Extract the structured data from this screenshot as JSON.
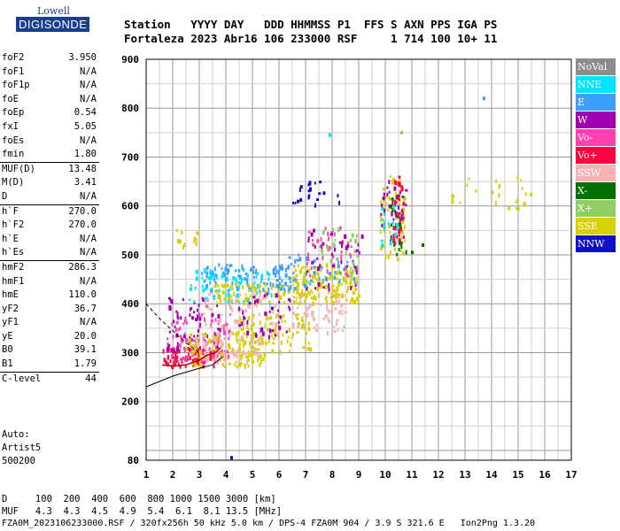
{
  "logo": {
    "line1": "Lowell",
    "line2": "DIGISONDE"
  },
  "header": {
    "line1": "Station   YYYY DAY   DDD HHMMSS P1  FFS S AXN PPS IGA PS",
    "line2": "Fortaleza 2023 Abr16 106 233000 RSF     1 714 100 10+ 11"
  },
  "params": [
    {
      "k": "foF2",
      "v": "3.950"
    },
    {
      "k": "foF1",
      "v": "N/A"
    },
    {
      "k": "foF1p",
      "v": "N/A"
    },
    {
      "k": "foE",
      "v": "N/A"
    },
    {
      "k": "foEp",
      "v": "0.54"
    },
    {
      "k": "fxI",
      "v": "5.05"
    },
    {
      "k": "foEs",
      "v": "N/A"
    },
    {
      "k": "fmin",
      "v": "1.80"
    },
    {
      "k": "MUF(D)",
      "v": "13.48",
      "sep": true
    },
    {
      "k": "M(D)",
      "v": "3.41"
    },
    {
      "k": "D",
      "v": "N/A"
    },
    {
      "k": "h`F",
      "v": "270.0",
      "sep": true
    },
    {
      "k": "h`F2",
      "v": "270.0"
    },
    {
      "k": "h`E",
      "v": "N/A"
    },
    {
      "k": "h`Es",
      "v": "N/A"
    },
    {
      "k": "hmF2",
      "v": "286.3",
      "sep": true
    },
    {
      "k": "hmF1",
      "v": "N/A"
    },
    {
      "k": "hmE",
      "v": "110.0"
    },
    {
      "k": "yF2",
      "v": "36.7"
    },
    {
      "k": "yF1",
      "v": "N/A"
    },
    {
      "k": "yE",
      "v": "20.0"
    },
    {
      "k": "B0",
      "v": "39.1"
    },
    {
      "k": "B1",
      "v": "1.79"
    },
    {
      "k": "C-level",
      "v": "44",
      "sep": true
    }
  ],
  "auto": {
    "line1": "Auto:",
    "line2": "Artist5",
    "line3": "500200"
  },
  "bottom": {
    "d_line": "D     100  200  400  600  800 1000 1500 3000 [km]",
    "muf_line": "MUF   4.3  4.3  4.5  4.9  5.4  6.1  8.1 13.5 [MHz]",
    "footer": "FZA0M_2023106233000.RSF / 320fx256h 50 kHz 5.0 km / DPS-4 FZA0M 904 / 3.9 S 321.6 E   Ion2Png 1.3.20"
  },
  "legend": [
    {
      "label": "NoVal",
      "color": "#8c8c8c"
    },
    {
      "label": "NNE",
      "color": "#00e5ff"
    },
    {
      "label": "E",
      "color": "#3aa0ff"
    },
    {
      "label": "W",
      "color": "#a000b0"
    },
    {
      "label": "Vo-",
      "color": "#ff40b0"
    },
    {
      "label": "Vo+",
      "color": "#ff0040"
    },
    {
      "label": "SSW",
      "color": "#f4b4b4"
    },
    {
      "label": "X-",
      "color": "#007000"
    },
    {
      "label": "X+",
      "color": "#90d060"
    },
    {
      "label": "SSE",
      "color": "#d8d000"
    },
    {
      "label": "NNW",
      "color": "#1010c8"
    }
  ],
  "chart_data": {
    "type": "scatter",
    "xlabel": "",
    "ylabel": "",
    "xlim": [
      1,
      17
    ],
    "ylim": [
      80,
      900
    ],
    "x_ticks": [
      1,
      2,
      3,
      4,
      5,
      6,
      7,
      8,
      9,
      10,
      11,
      12,
      13,
      14,
      15,
      16,
      17
    ],
    "y_ticks": [
      80,
      200,
      300,
      400,
      500,
      600,
      700,
      800,
      900
    ],
    "grid": true,
    "clusters": [
      {
        "series": "Vo+",
        "x": [
          1.6,
          3.6
        ],
        "y": [
          270,
          310
        ],
        "n": 90
      },
      {
        "series": "Vo-",
        "x": [
          1.8,
          4.2
        ],
        "y": [
          280,
          380
        ],
        "n": 90
      },
      {
        "series": "W",
        "x": [
          1.8,
          3.8
        ],
        "y": [
          300,
          420
        ],
        "n": 60
      },
      {
        "series": "SSE",
        "x": [
          2.5,
          5.5
        ],
        "y": [
          270,
          340
        ],
        "n": 120
      },
      {
        "series": "SSW",
        "x": [
          2.8,
          5.4
        ],
        "y": [
          280,
          330
        ],
        "n": 60
      },
      {
        "series": "SSE",
        "x": [
          4.2,
          7.2
        ],
        "y": [
          300,
          380
        ],
        "n": 90
      },
      {
        "series": "SSW",
        "x": [
          3.0,
          6.0
        ],
        "y": [
          330,
          420
        ],
        "n": 70
      },
      {
        "series": "E",
        "x": [
          3.2,
          6.5
        ],
        "y": [
          420,
          480
        ],
        "n": 110
      },
      {
        "series": "NNE",
        "x": [
          2.6,
          5.8
        ],
        "y": [
          400,
          470
        ],
        "n": 70
      },
      {
        "series": "SSE",
        "x": [
          3.5,
          6.5
        ],
        "y": [
          400,
          440
        ],
        "n": 60
      },
      {
        "series": "W",
        "x": [
          4.5,
          6.5
        ],
        "y": [
          330,
          420
        ],
        "n": 40
      },
      {
        "series": "SSE",
        "x": [
          6.5,
          9.0
        ],
        "y": [
          400,
          480
        ],
        "n": 150
      },
      {
        "series": "SSW",
        "x": [
          6.5,
          8.5
        ],
        "y": [
          340,
          420
        ],
        "n": 60
      },
      {
        "series": "E",
        "x": [
          6.0,
          9.0
        ],
        "y": [
          430,
          500
        ],
        "n": 50
      },
      {
        "series": "Vo-",
        "x": [
          7.0,
          9.0
        ],
        "y": [
          450,
          560
        ],
        "n": 40
      },
      {
        "series": "W",
        "x": [
          7.0,
          9.2
        ],
        "y": [
          430,
          550
        ],
        "n": 40
      },
      {
        "series": "X+",
        "x": [
          7.0,
          9.0
        ],
        "y": [
          440,
          560
        ],
        "n": 30
      },
      {
        "series": "SSE",
        "x": [
          9.8,
          10.8
        ],
        "y": [
          490,
          660
        ],
        "n": 60
      },
      {
        "series": "Vo+",
        "x": [
          10.3,
          10.7
        ],
        "y": [
          520,
          660
        ],
        "n": 40
      },
      {
        "series": "W",
        "x": [
          9.8,
          10.8
        ],
        "y": [
          560,
          650
        ],
        "n": 30
      },
      {
        "series": "X-",
        "x": [
          10.2,
          10.8
        ],
        "y": [
          500,
          620
        ],
        "n": 20
      },
      {
        "series": "NNW",
        "x": [
          6.5,
          8.3
        ],
        "y": [
          600,
          650
        ],
        "n": 20
      },
      {
        "series": "SSE",
        "x": [
          12.5,
          15.5
        ],
        "y": [
          590,
          660
        ],
        "n": 25
      },
      {
        "series": "SSE",
        "x": [
          2.0,
          3.0
        ],
        "y": [
          510,
          550
        ],
        "n": 12
      },
      {
        "series": "NNE",
        "x": [
          9.8,
          10.5
        ],
        "y": [
          520,
          600
        ],
        "n": 15
      }
    ],
    "singles": [
      {
        "series": "E",
        "x": 13.7,
        "y": 820
      },
      {
        "series": "NNE",
        "x": 7.9,
        "y": 745
      },
      {
        "series": "X+",
        "x": 10.6,
        "y": 750
      },
      {
        "series": "NNW",
        "x": 4.2,
        "y": 85
      },
      {
        "series": "X-",
        "x": 11.4,
        "y": 520
      },
      {
        "series": "X-",
        "x": 11.0,
        "y": 505
      }
    ],
    "virtual_height_trace": {
      "x": [
        1.6,
        2.0,
        2.5,
        3.0,
        3.3,
        3.6,
        3.8
      ],
      "y": [
        275,
        272,
        275,
        285,
        295,
        300,
        310
      ]
    },
    "real_height_profile": {
      "x": [
        1.0,
        2.0,
        3.0,
        3.5,
        3.9
      ],
      "y": [
        230,
        252,
        268,
        275,
        292
      ]
    },
    "dashed_profile": {
      "x": [
        1.0,
        1.5,
        2.0,
        2.5,
        3.0
      ],
      "y": [
        400,
        370,
        345,
        320,
        300
      ]
    }
  }
}
